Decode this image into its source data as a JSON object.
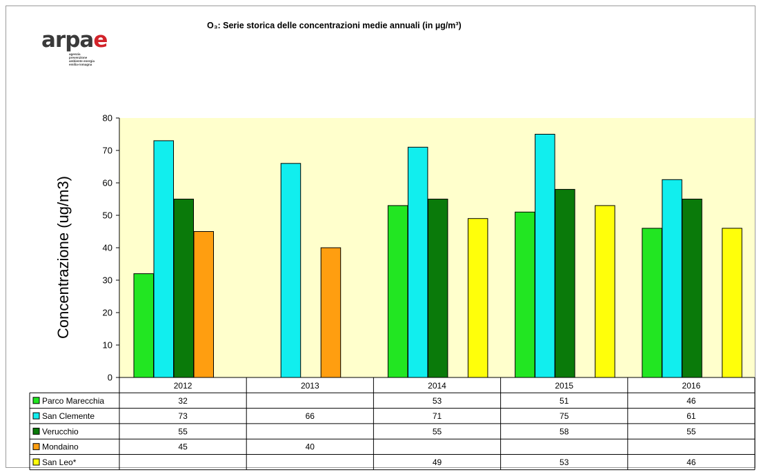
{
  "logo": {
    "word_prefix": "arpa",
    "word_suffix": "e",
    "tagline": [
      "agenzia",
      "prevenzione",
      "ambiente energia",
      "emilia-romagna"
    ]
  },
  "chart_data": {
    "type": "bar",
    "title": "O₃: Serie storica delle concentrazioni medie annuali (in µg/m³)",
    "xlabel": "",
    "ylabel": "Concentrazione (ug/m3)",
    "ylim": [
      0,
      80
    ],
    "yticks": [
      0,
      10,
      20,
      30,
      40,
      50,
      60,
      70,
      80
    ],
    "grid": false,
    "legend": "data-table",
    "categories": [
      "2012",
      "2013",
      "2014",
      "2015",
      "2016"
    ],
    "series": [
      {
        "name": "Parco Marecchia",
        "color": "#22e622",
        "values": [
          32,
          null,
          53,
          51,
          46
        ]
      },
      {
        "name": "San Clemente",
        "color": "#11eeee",
        "values": [
          73,
          66,
          71,
          75,
          61
        ]
      },
      {
        "name": "Verucchio",
        "color": "#0a7a0a",
        "values": [
          55,
          null,
          55,
          58,
          55
        ]
      },
      {
        "name": "Mondaino",
        "color": "#ff9e10",
        "values": [
          45,
          40,
          null,
          null,
          null
        ]
      },
      {
        "name": "San Leo*",
        "color": "#ffff0a",
        "values": [
          null,
          null,
          49,
          53,
          46
        ]
      }
    ],
    "plot_background": "#ffffcc"
  }
}
